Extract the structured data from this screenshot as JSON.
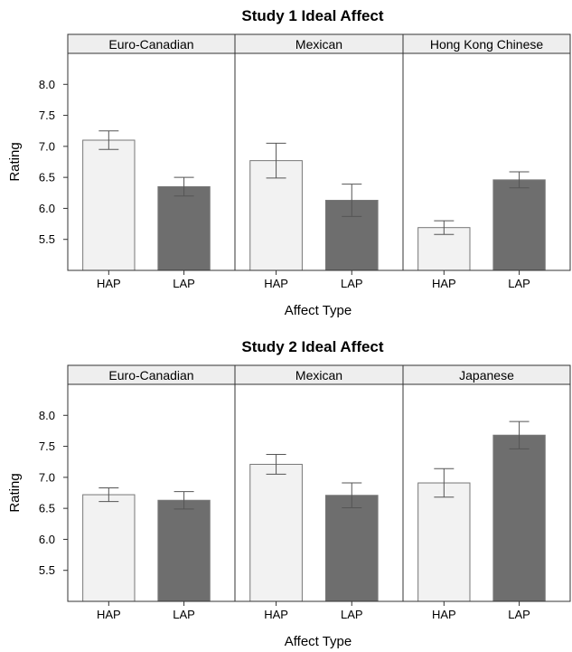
{
  "colors": {
    "hap_fill": "#f2f2f2",
    "lap_fill": "#6e6e6e",
    "strip_fill": "#eeeeee",
    "frame": "#333333"
  },
  "chart_data": [
    {
      "type": "bar",
      "title": "Study 1 Ideal Affect",
      "xlabel": "Affect Type",
      "ylabel": "Rating",
      "ylim": [
        5.0,
        8.5
      ],
      "yticks": [
        "8.0",
        "7.5",
        "7.0",
        "6.5",
        "6.0",
        "5.5"
      ],
      "categories": [
        "HAP",
        "LAP"
      ],
      "panels": [
        {
          "name": "Euro-Canadian",
          "values": [
            7.1,
            6.35
          ],
          "errors": [
            0.15,
            0.15
          ]
        },
        {
          "name": "Mexican",
          "values": [
            6.77,
            6.13
          ],
          "errors": [
            0.28,
            0.26
          ]
        },
        {
          "name": "Hong Kong Chinese",
          "values": [
            5.69,
            6.46
          ],
          "errors": [
            0.11,
            0.13
          ]
        }
      ],
      "grid": false
    },
    {
      "type": "bar",
      "title": "Study 2 Ideal Affect",
      "xlabel": "Affect Type",
      "ylabel": "Rating",
      "ylim": [
        5.0,
        8.5
      ],
      "yticks": [
        "8.0",
        "7.5",
        "7.0",
        "6.5",
        "6.0",
        "5.5"
      ],
      "categories": [
        "HAP",
        "LAP"
      ],
      "panels": [
        {
          "name": "Euro-Canadian",
          "values": [
            6.72,
            6.63
          ],
          "errors": [
            0.11,
            0.14
          ]
        },
        {
          "name": "Mexican",
          "values": [
            7.21,
            6.71
          ],
          "errors": [
            0.16,
            0.2
          ]
        },
        {
          "name": "Japanese",
          "values": [
            6.91,
            7.68
          ],
          "errors": [
            0.23,
            0.22
          ]
        }
      ],
      "grid": false
    }
  ]
}
